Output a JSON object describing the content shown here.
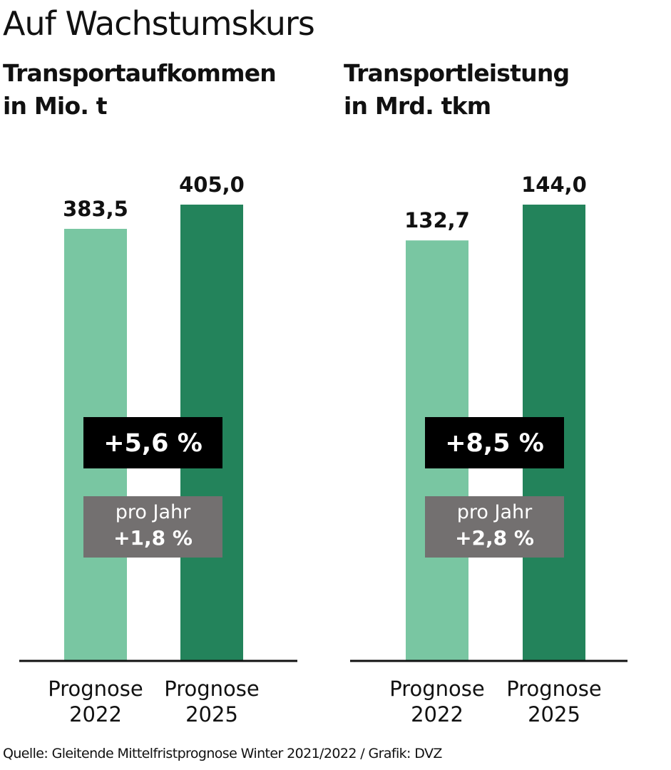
{
  "title": "Auf Wachstumskurs",
  "source": "Quelle: Gleitende Mittelfristprognose Winter 2021/2022 / Grafik: DVZ",
  "chart_data": [
    {
      "type": "bar",
      "title_lines": [
        "Transportaufkommen",
        "in Mio. t"
      ],
      "categories": [
        [
          "Prognose",
          "2022"
        ],
        [
          "Prognose",
          "2025"
        ]
      ],
      "values": [
        383.5,
        405.0
      ],
      "value_labels": [
        "383,5",
        "405,0"
      ],
      "change_total": "+5,6 %",
      "change_per_year_label": "pro Jahr",
      "change_per_year": "+1,8 %",
      "colors": [
        "#79c6a2",
        "#23835b"
      ]
    },
    {
      "type": "bar",
      "title_lines": [
        "Transportleistung",
        "in Mrd. tkm"
      ],
      "categories": [
        [
          "Prognose",
          "2022"
        ],
        [
          "Prognose",
          "2025"
        ]
      ],
      "values": [
        132.7,
        144.0
      ],
      "value_labels": [
        "132,7",
        "144,0"
      ],
      "change_total": "+8,5 %",
      "change_per_year_label": "pro Jahr",
      "change_per_year": "+2,8 %",
      "colors": [
        "#79c6a2",
        "#23835b"
      ]
    }
  ]
}
